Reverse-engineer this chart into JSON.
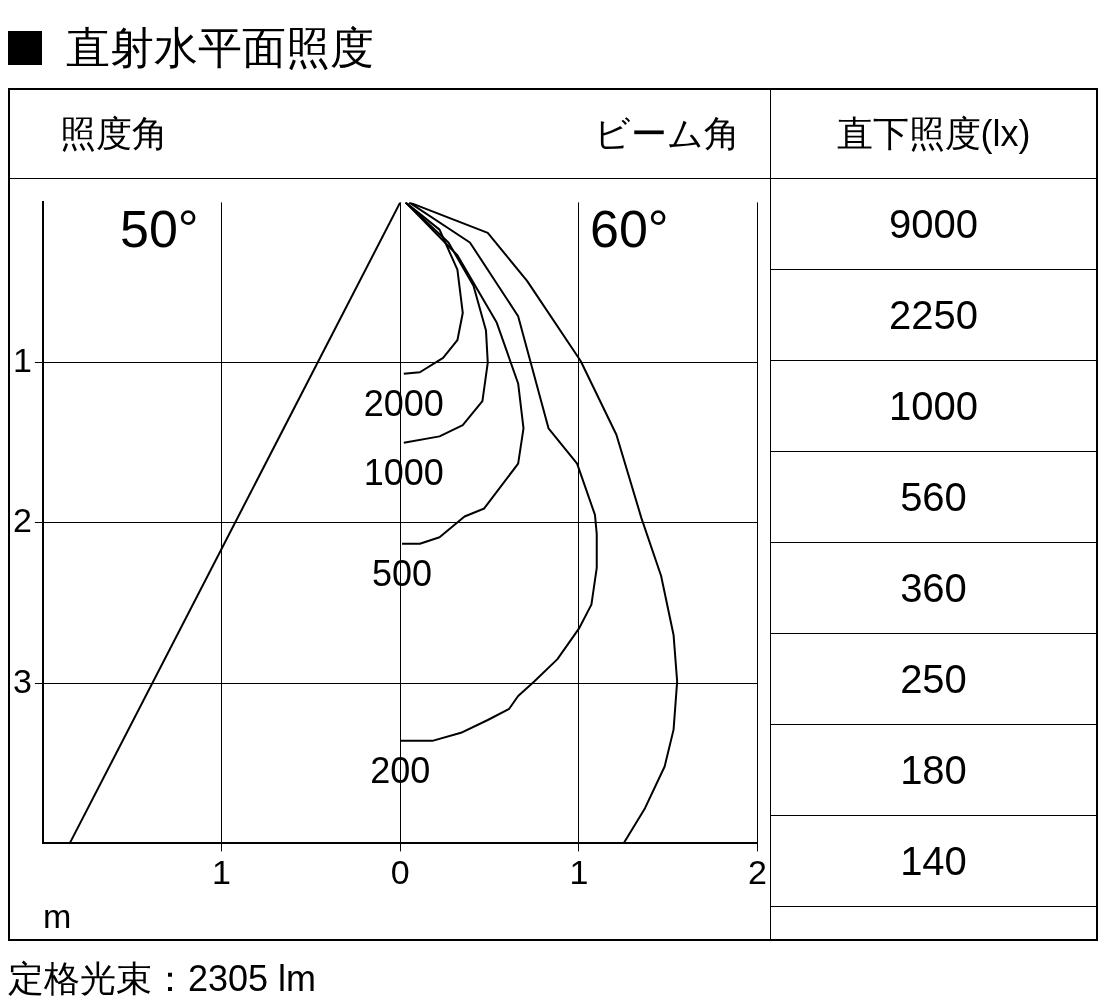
{
  "chart_data": {
    "type": "line",
    "title": "直射水平面照度",
    "xlabel": "m",
    "xlim": [
      -2,
      2
    ],
    "xticks": [
      {
        "value": -1,
        "label": "1"
      },
      0,
      1,
      2
    ],
    "ylim": [
      4,
      0
    ],
    "yticks": [
      1,
      2,
      3
    ],
    "grid": true,
    "legend": false,
    "marker": "none",
    "line_style": "solid",
    "annotations": [
      "照度角",
      "50°",
      "ビーム角",
      "60°",
      "直下照度(lx)",
      "9000",
      "2250",
      "1000",
      "560",
      "360",
      "250",
      "180",
      "140",
      "定格光束：2305 lm"
    ],
    "series": [
      {
        "name": "2000",
        "color": "#000000",
        "x": [
          0.03,
          0.22,
          0.32,
          0.35,
          0.32,
          0.24,
          0.11,
          0.02
        ],
        "values": [
          0,
          0.17,
          0.42,
          0.69,
          0.86,
          0.97,
          1.06,
          1.07
        ]
      },
      {
        "name": "1000",
        "color": "#000000",
        "x": [
          0.03,
          0.27,
          0.41,
          0.48,
          0.49,
          0.46,
          0.35,
          0.22,
          0.02
        ],
        "values": [
          0,
          0.25,
          0.52,
          0.8,
          1.0,
          1.24,
          1.39,
          1.46,
          1.5
        ]
      },
      {
        "name": "500",
        "color": "#000000",
        "x": [
          0.03,
          0.32,
          0.54,
          0.66,
          0.69,
          0.66,
          0.47,
          0.36,
          0.22,
          0.11,
          0.01
        ],
        "values": [
          0,
          0.33,
          0.75,
          1.13,
          1.41,
          1.63,
          1.91,
          1.96,
          2.09,
          2.13,
          2.13
        ]
      },
      {
        "name": "200",
        "color": "#000000",
        "x": [
          0.05,
          0.39,
          0.66,
          0.83,
          0.99,
          1.09,
          1.1,
          1.1,
          1.07,
          1.0,
          0.88,
          0.75,
          0.66,
          0.61,
          0.49,
          0.34,
          0.18,
          0.0
        ],
        "values": [
          0,
          0.25,
          0.71,
          1.41,
          1.63,
          1.95,
          2.07,
          2.28,
          2.51,
          2.66,
          2.85,
          2.99,
          3.08,
          3.16,
          3.23,
          3.31,
          3.36,
          3.36
        ]
      },
      {
        "color": "#000000",
        "x": [
          0.05,
          0.49,
          0.71,
          1.01,
          1.21,
          1.35,
          1.46,
          1.53,
          1.55,
          1.53,
          1.48,
          1.37,
          1.25
        ],
        "values": [
          0,
          0.19,
          0.49,
          0.99,
          1.45,
          1.97,
          2.33,
          2.7,
          2.99,
          3.29,
          3.52,
          3.78,
          4.0
        ]
      },
      {
        "color": "#000000",
        "x": [
          0,
          -1.85
        ],
        "values": [
          0,
          4
        ]
      }
    ]
  }
}
